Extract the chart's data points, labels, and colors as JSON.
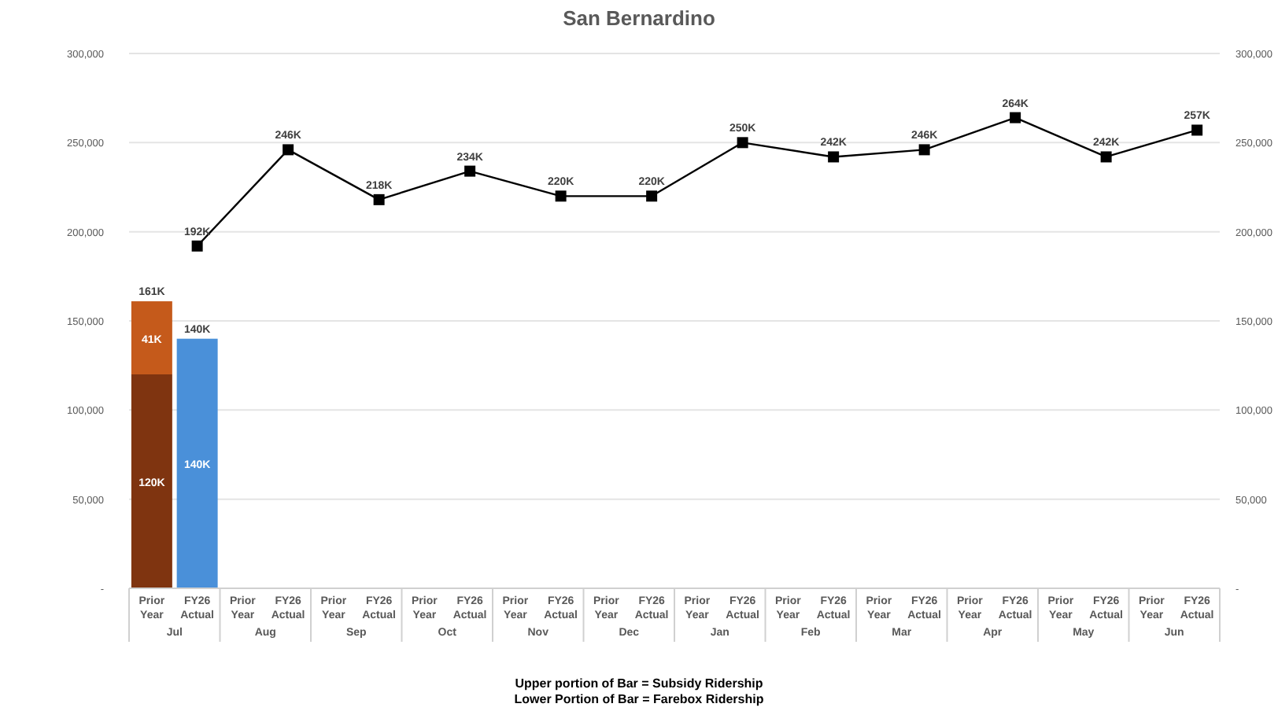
{
  "chart_data": {
    "type": "bar",
    "title": "San Bernardino",
    "stacked": true,
    "categories": [
      "Prior Year",
      "FY26 Actual",
      "Prior Year",
      "FY26 Actual",
      "Prior Year",
      "FY26 Actual",
      "Prior Year",
      "FY26 Actual",
      "Prior Year",
      "FY26 Actual",
      "Prior Year",
      "FY26 Actual",
      "Prior Year",
      "FY26 Actual",
      "Prior Year",
      "FY26 Actual",
      "Prior Year",
      "FY26 Actual",
      "Prior Year",
      "FY26 Actual",
      "Prior Year",
      "FY26 Actual",
      "Prior Year",
      "FY26 Actual"
    ],
    "series": [
      {
        "color": "#7f3410",
        "values": [
          120000,
          null,
          null,
          null,
          null,
          null,
          null,
          null,
          null,
          null,
          null,
          null,
          null,
          null,
          null,
          null,
          null,
          null,
          null,
          null,
          null,
          null,
          null,
          null
        ],
        "value_labels": [
          "120K",
          null,
          null,
          null,
          null,
          null,
          null,
          null,
          null,
          null,
          null,
          null,
          null,
          null,
          null,
          null,
          null,
          null,
          null,
          null,
          null,
          null,
          null,
          null
        ]
      },
      {
        "color": "#c55a1b",
        "values": [
          41000,
          null,
          null,
          null,
          null,
          null,
          null,
          null,
          null,
          null,
          null,
          null,
          null,
          null,
          null,
          null,
          null,
          null,
          null,
          null,
          null,
          null,
          null,
          null
        ],
        "value_labels": [
          "41K",
          null,
          null,
          null,
          null,
          null,
          null,
          null,
          null,
          null,
          null,
          null,
          null,
          null,
          null,
          null,
          null,
          null,
          null,
          null,
          null,
          null,
          null,
          null
        ]
      },
      {
        "color": "#4a90d9",
        "values": [
          null,
          140000,
          null,
          null,
          null,
          null,
          null,
          null,
          null,
          null,
          null,
          null,
          null,
          null,
          null,
          null,
          null,
          null,
          null,
          null,
          null,
          null,
          null,
          null
        ],
        "value_labels": [
          null,
          "140K",
          null,
          null,
          null,
          null,
          null,
          null,
          null,
          null,
          null,
          null,
          null,
          null,
          null,
          null,
          null,
          null,
          null,
          null,
          null,
          null,
          null,
          null
        ]
      },
      {
        "type": "line",
        "color": "#000000",
        "marker": "square",
        "values": [
          null,
          192000,
          null,
          246000,
          null,
          218000,
          null,
          234000,
          null,
          220000,
          null,
          220000,
          null,
          250000,
          null,
          242000,
          null,
          246000,
          null,
          264000,
          null,
          242000,
          null,
          257000
        ],
        "value_labels": [
          null,
          "192K",
          null,
          "246K",
          null,
          "218K",
          null,
          "234K",
          null,
          "220K",
          null,
          "220K",
          null,
          "250K",
          null,
          "242K",
          null,
          "246K",
          null,
          "264K",
          null,
          "242K",
          null,
          "257K"
        ]
      }
    ],
    "totals": [
      "161K",
      "140K",
      null,
      null,
      null,
      null,
      null,
      null,
      null,
      null,
      null,
      null,
      null,
      null,
      null,
      null,
      null,
      null,
      null,
      null,
      null,
      null,
      null,
      null
    ],
    "ylim": [
      0,
      300000
    ],
    "yticks": [
      {
        "value": 0,
        "label": "-"
      },
      {
        "value": 50000,
        "label": "50,000"
      },
      {
        "value": 100000,
        "label": "100,000"
      },
      {
        "value": 150000,
        "label": "150,000"
      },
      {
        "value": 200000,
        "label": "200,000"
      },
      {
        "value": 250000,
        "label": "250,000"
      },
      {
        "value": 300000,
        "label": "300,000"
      }
    ],
    "y2lim": [
      0,
      300000
    ],
    "y2ticks": [
      {
        "value": 0,
        "label": "-"
      },
      {
        "value": 50000,
        "label": "50,000"
      },
      {
        "value": 100000,
        "label": "100,000"
      },
      {
        "value": 150000,
        "label": "150,000"
      },
      {
        "value": 200000,
        "label": "200,000"
      },
      {
        "value": 250000,
        "label": "250,000"
      },
      {
        "value": 300000,
        "label": "300,000"
      }
    ],
    "grid": "y",
    "annotations": [
      "Jul",
      "Aug",
      "Sep",
      "Oct",
      "Nov",
      "Dec",
      "Jan",
      "Feb",
      "Mar",
      "Apr",
      "May",
      "Jun",
      "Upper portion of Bar = Subsidy Ridership",
      "Lower Portion of Bar = Farebox Ridership"
    ]
  }
}
